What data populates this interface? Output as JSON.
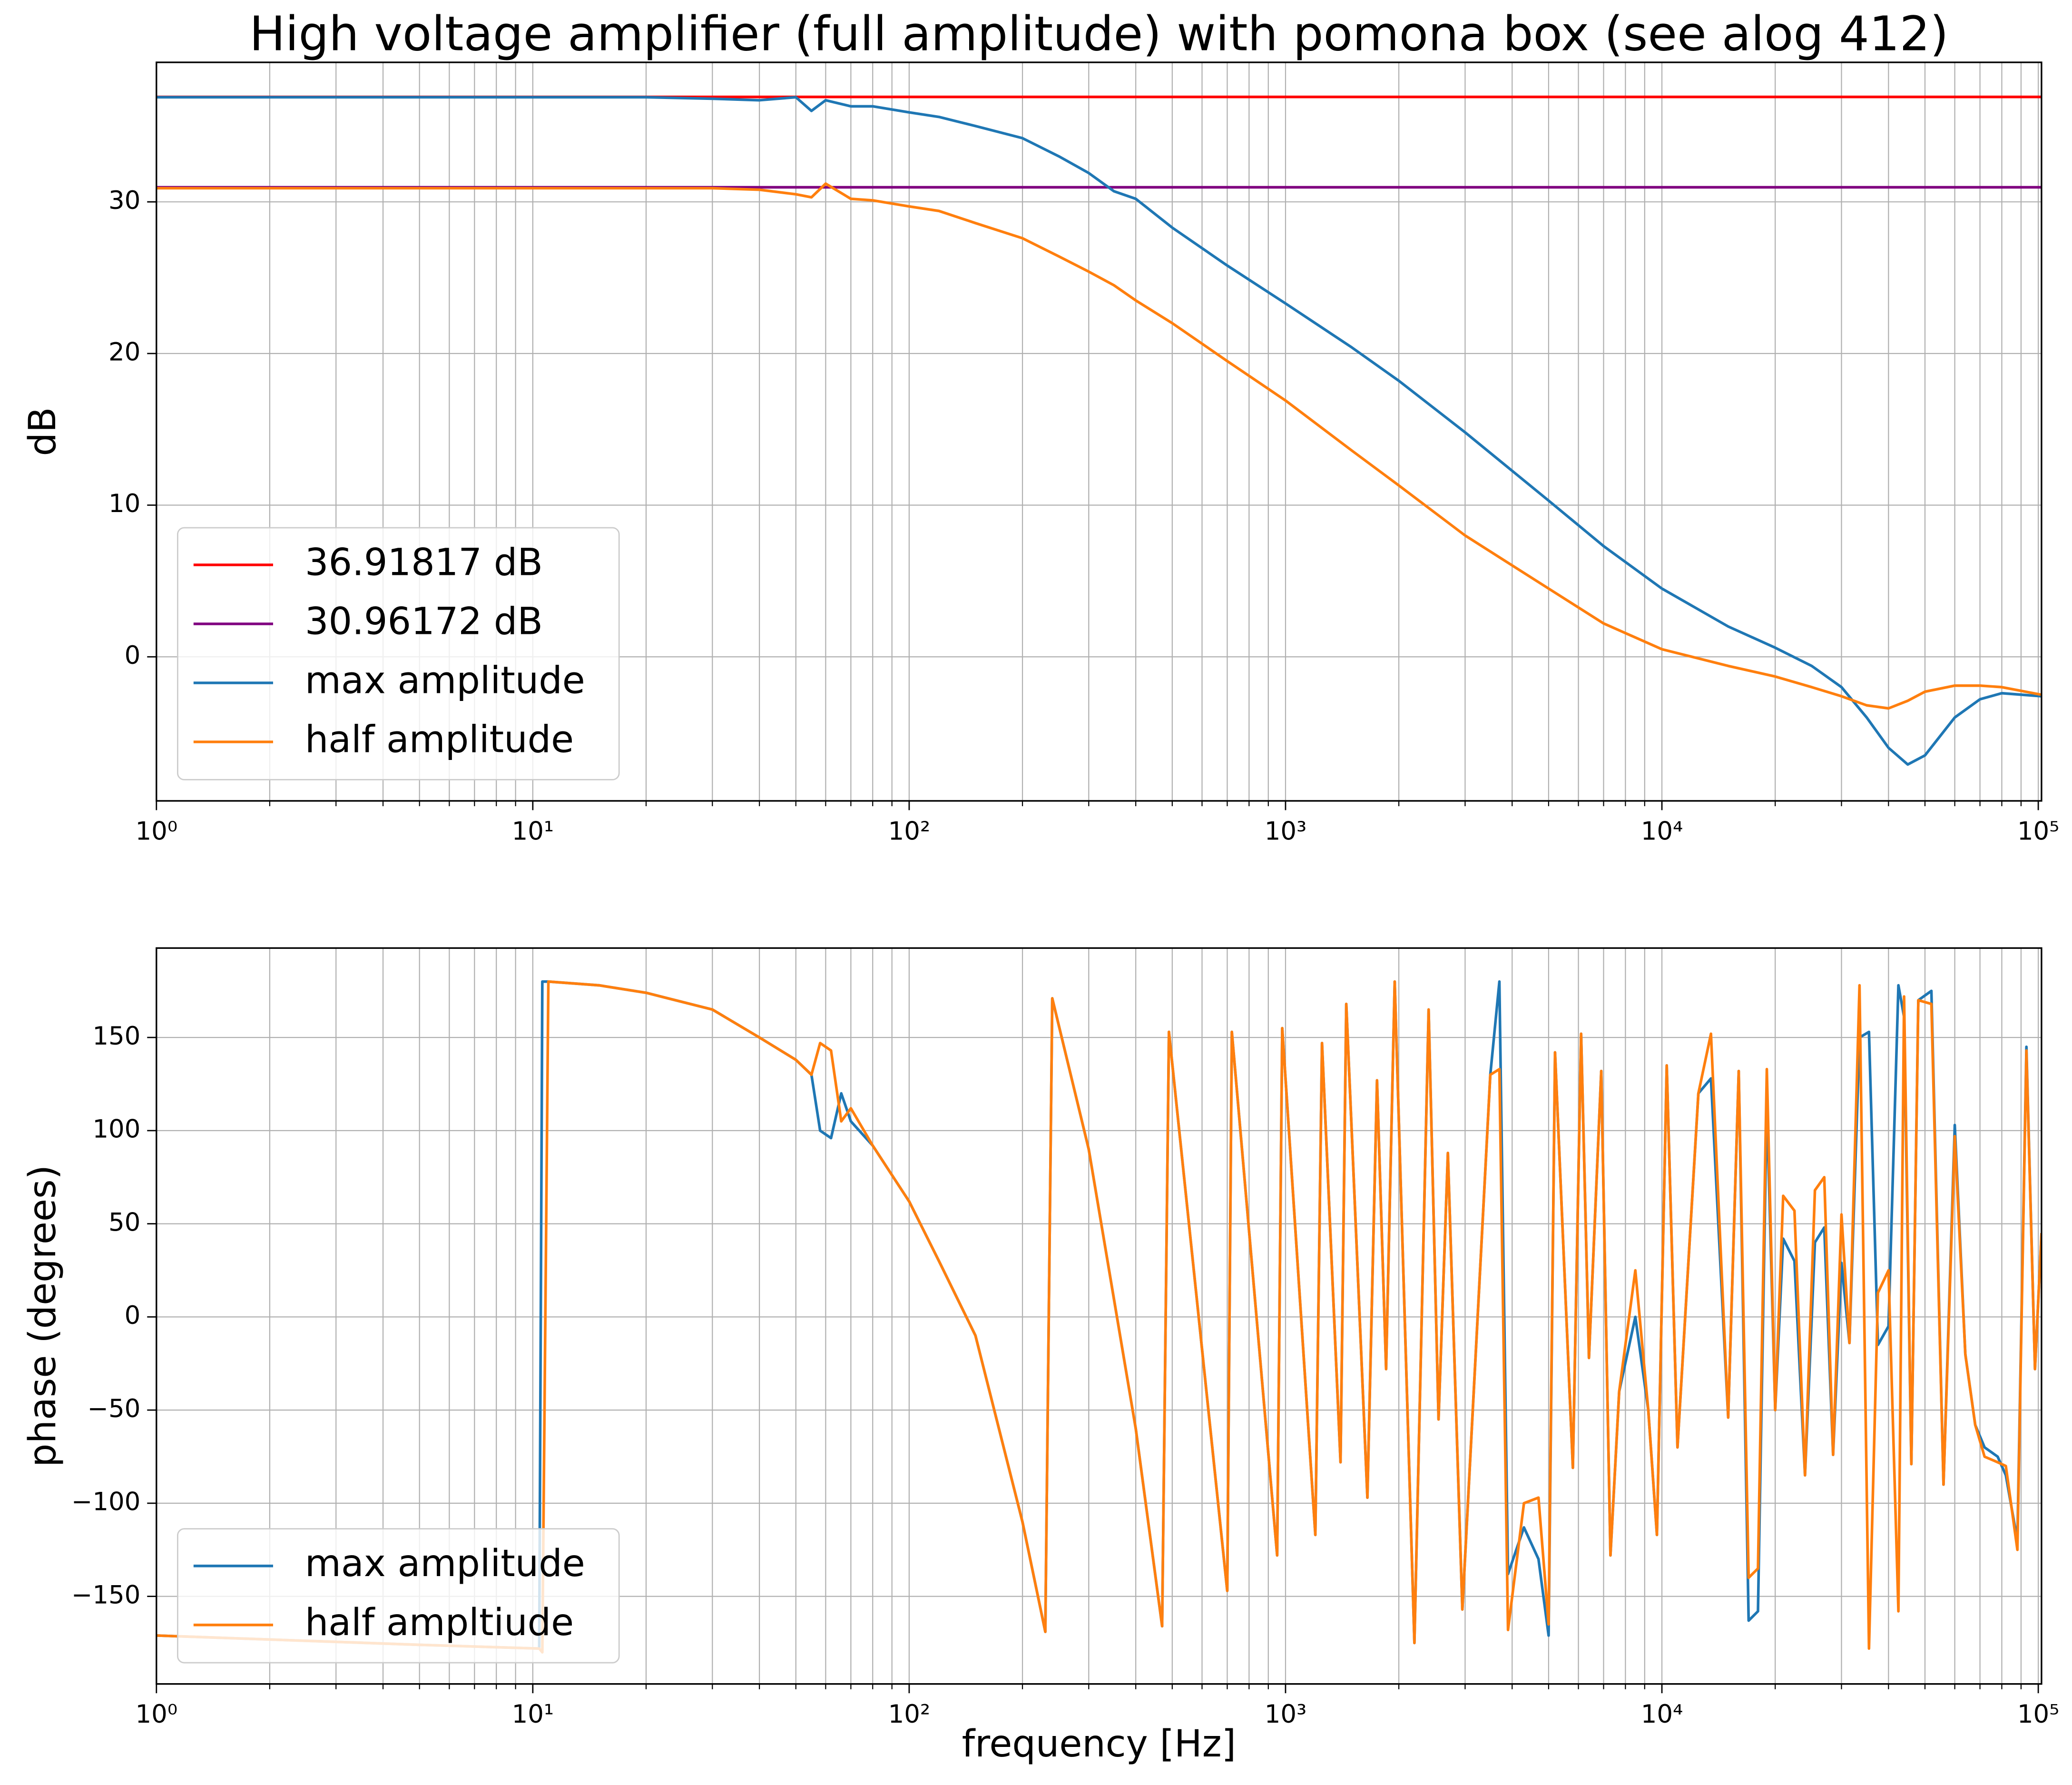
{
  "chart_data": [
    {
      "type": "line",
      "title": "High voltage amplifier (full amplitude) with pomona box (see alog 412)",
      "ylabel": "dB",
      "log_x": true,
      "grid": true,
      "legend": "lower left",
      "xlim": [
        1,
        102000
      ],
      "ylim": [
        -9.5,
        39.2
      ],
      "xticks": [
        {
          "value": 1,
          "label": "10⁰"
        },
        {
          "value": 10,
          "label": "10¹"
        },
        {
          "value": 100,
          "label": "10²"
        },
        {
          "value": 1000,
          "label": "10³"
        },
        {
          "value": 10000,
          "label": "10⁴"
        },
        {
          "value": 100000,
          "label": "10⁵"
        }
      ],
      "yticks": [
        0,
        10,
        20,
        30
      ],
      "hlines": [
        {
          "name": "36.91817 dB",
          "color": "#ff0000",
          "value": 36.91817
        },
        {
          "name": "30.96172 dB",
          "color": "#800080",
          "value": 30.96172
        }
      ],
      "x": [
        1,
        2,
        5,
        10,
        20,
        30,
        40,
        50,
        55,
        60,
        70,
        80,
        100,
        120,
        150,
        200,
        250,
        300,
        350,
        400,
        500,
        700,
        1000,
        1500,
        2000,
        3000,
        5000,
        7000,
        10000,
        15000,
        20000,
        25000,
        30000,
        35000,
        40000,
        45000,
        50000,
        60000,
        70000,
        80000,
        102000
      ],
      "series": [
        {
          "name": "max amplitude",
          "color": "#1f77b4",
          "values": [
            36.9,
            36.9,
            36.9,
            36.9,
            36.9,
            36.8,
            36.7,
            36.9,
            36.0,
            36.7,
            36.3,
            36.3,
            35.9,
            35.6,
            35.0,
            34.2,
            33.0,
            31.9,
            30.7,
            30.2,
            28.3,
            25.8,
            23.3,
            20.4,
            18.2,
            14.8,
            10.3,
            7.3,
            4.5,
            2.0,
            0.6,
            -0.6,
            -2.0,
            -4.0,
            -6.0,
            -7.1,
            -6.5,
            -4.0,
            -2.8,
            -2.4,
            -2.6
          ]
        },
        {
          "name": "half amplitude",
          "color": "#ff7f0e",
          "values": [
            30.9,
            30.9,
            30.9,
            30.9,
            30.9,
            30.9,
            30.8,
            30.5,
            30.3,
            31.2,
            30.2,
            30.1,
            29.7,
            29.4,
            28.6,
            27.6,
            26.4,
            25.4,
            24.5,
            23.5,
            22.0,
            19.5,
            16.9,
            13.6,
            11.3,
            8.0,
            4.5,
            2.2,
            0.5,
            -0.6,
            -1.3,
            -2.0,
            -2.6,
            -3.2,
            -3.4,
            -2.9,
            -2.3,
            -1.9,
            -1.9,
            -2.0,
            -2.5
          ]
        }
      ]
    },
    {
      "type": "line",
      "xlabel": "frequency [Hz]",
      "ylabel": "phase (degrees)",
      "log_x": true,
      "grid": true,
      "legend": "lower left",
      "xlim": [
        1,
        102000
      ],
      "ylim": [
        -197,
        198
      ],
      "xticks": [
        {
          "value": 1,
          "label": "10⁰"
        },
        {
          "value": 10,
          "label": "10¹"
        },
        {
          "value": 100,
          "label": "10²"
        },
        {
          "value": 1000,
          "label": "10³"
        },
        {
          "value": 10000,
          "label": "10⁴"
        },
        {
          "value": 100000,
          "label": "10⁵"
        }
      ],
      "yticks": [
        {
          "value": -150,
          "label": "−150"
        },
        {
          "value": -100,
          "label": "−100"
        },
        {
          "value": -50,
          "label": "−50"
        },
        0,
        50,
        100,
        150
      ],
      "x": [
        1,
        5,
        10.4,
        10.6,
        11,
        15,
        20,
        30,
        40,
        50,
        55,
        58,
        62,
        66,
        70,
        80,
        100,
        120,
        150,
        200,
        230,
        240,
        300,
        400,
        470,
        490,
        700,
        720,
        950,
        980,
        1200,
        1250,
        1400,
        1450,
        1650,
        1750,
        1850,
        1950,
        2200,
        2400,
        2550,
        2700,
        2950,
        3500,
        3700,
        3900,
        4300,
        4700,
        5000,
        5200,
        5800,
        6100,
        6400,
        6900,
        7300,
        7700,
        8500,
        9200,
        9700,
        10300,
        11000,
        12500,
        13500,
        15000,
        16000,
        17000,
        18000,
        19000,
        20000,
        21000,
        22500,
        24000,
        25500,
        27000,
        28500,
        30000,
        31500,
        33500,
        35500,
        37500,
        40000,
        42500,
        44000,
        46000,
        48000,
        52000,
        56000,
        60000,
        64000,
        68000,
        72000,
        78000,
        82000,
        88000,
        93000,
        98000,
        102000
      ],
      "series": [
        {
          "name": "max amplitude",
          "color": "#1f77b4",
          "values": [
            -171,
            -176,
            -178,
            180,
            180,
            178,
            174,
            165,
            150,
            138,
            130,
            100,
            96,
            120,
            105,
            92,
            62,
            30,
            -10,
            -110,
            -169,
            171,
            90,
            -60,
            -166,
            153,
            -147,
            153,
            -128,
            155,
            -117,
            147,
            -78,
            168,
            -97,
            127,
            -28,
            180,
            -175,
            165,
            -55,
            88,
            -157,
            130,
            180,
            -138,
            -113,
            -130,
            -171,
            142,
            -81,
            152,
            -22,
            132,
            -128,
            -40,
            0,
            -50,
            -117,
            135,
            -70,
            120,
            128,
            -54,
            132,
            -163,
            -158,
            116,
            -50,
            42,
            30,
            -85,
            40,
            48,
            -74,
            29,
            -14,
            150,
            153,
            -15,
            -5,
            178,
            161,
            -79,
            170,
            175,
            -90,
            103,
            -20,
            -58,
            -70,
            -75,
            -85,
            -120,
            145,
            -28,
            45
          ]
        },
        {
          "name": "half ampltiude",
          "color": "#ff7f0e",
          "values": [
            -171,
            -176,
            -178,
            -180,
            180,
            178,
            174,
            165,
            150,
            138,
            130,
            147,
            143,
            105,
            112,
            92,
            62,
            30,
            -10,
            -110,
            -169,
            171,
            90,
            -60,
            -166,
            153,
            -147,
            153,
            -128,
            155,
            -117,
            147,
            -78,
            168,
            -97,
            127,
            -28,
            180,
            -175,
            165,
            -55,
            88,
            -157,
            130,
            133,
            -168,
            -100,
            -97,
            -165,
            142,
            -81,
            152,
            -22,
            132,
            -128,
            -40,
            25,
            -50,
            -117,
            135,
            -70,
            120,
            152,
            -54,
            132,
            -140,
            -135,
            133,
            -50,
            65,
            57,
            -85,
            68,
            75,
            -74,
            55,
            -14,
            178,
            -178,
            13,
            25,
            -158,
            172,
            -79,
            170,
            168,
            -90,
            97,
            -20,
            -58,
            -75,
            -78,
            -80,
            -125,
            143,
            -28,
            45
          ]
        }
      ]
    }
  ]
}
